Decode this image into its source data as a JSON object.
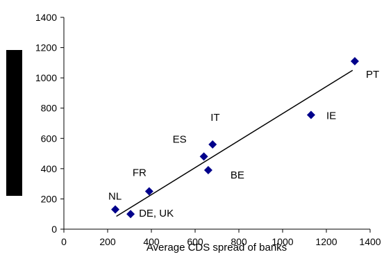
{
  "chart_data": {
    "type": "scatter",
    "title": "",
    "xlabel": "Average CDS spread of banks",
    "ylabel": "",
    "xlim": [
      0,
      1400
    ],
    "ylim": [
      0,
      1400
    ],
    "x_ticks": [
      "0",
      "200",
      "400",
      "600",
      "800",
      "1000",
      "1200",
      "1400"
    ],
    "y_ticks": [
      "0",
      "200",
      "400",
      "600",
      "800",
      "1000",
      "1200",
      "1400"
    ],
    "grid": false,
    "legend": "none",
    "marker_color": "#00008B",
    "points": [
      {
        "label": "NL",
        "x": 235,
        "y": 130
      },
      {
        "label": "DE, UK",
        "x": 305,
        "y": 100
      },
      {
        "label": "FR",
        "x": 390,
        "y": 250
      },
      {
        "label": "ES",
        "x": 640,
        "y": 480
      },
      {
        "label": "IT",
        "x": 680,
        "y": 560
      },
      {
        "label": "BE",
        "x": 660,
        "y": 390
      },
      {
        "label": "IE",
        "x": 1130,
        "y": 755
      },
      {
        "label": "PT",
        "x": 1330,
        "y": 1110
      }
    ],
    "trendline": {
      "x": [
        240,
        1320
      ],
      "y": [
        85,
        1050
      ]
    }
  }
}
